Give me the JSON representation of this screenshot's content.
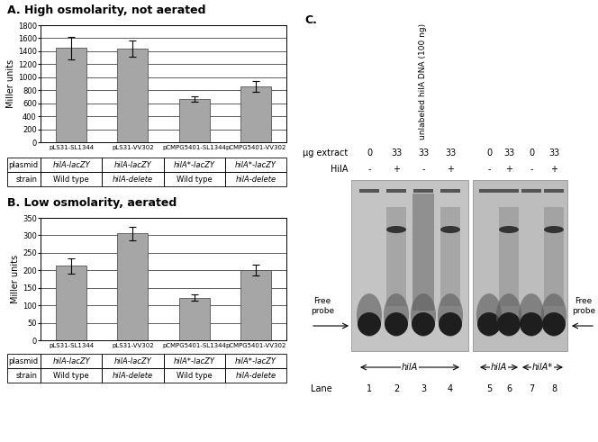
{
  "chart_data": [
    {
      "type": "bar",
      "panel": "A.",
      "title": "High osmolarity, not aerated",
      "categories": [
        "pLS31-SL1344",
        "pLS31-VV302",
        "pCMPG5401-SL1344",
        "pCMPG5401-VV302"
      ],
      "values": [
        1450,
        1440,
        670,
        860
      ],
      "errors": [
        170,
        120,
        40,
        80
      ],
      "color": "#a6a6a6",
      "y_label": "Miller units",
      "ylim": [
        0,
        1800
      ],
      "yticks": [
        0,
        200,
        400,
        600,
        800,
        1000,
        1200,
        1400,
        1600,
        1800
      ],
      "grid": true,
      "table": {
        "row_headers": [
          "plasmid",
          "strain"
        ],
        "rows": [
          [
            "hilA-lacZY",
            "hilA-lacZY",
            "hilA*-lacZY",
            "hilA*-lacZY"
          ],
          [
            "Wild type",
            "hilA-delete",
            "Wild type",
            "hilA-delete"
          ]
        ]
      }
    },
    {
      "type": "bar",
      "panel": "B.",
      "title": "Low osmolarity, aerated",
      "categories": [
        "pLS31-SL1344",
        "pLS31-VV302",
        "pCMPG5401-SL1344",
        "pCMPG5401-VV302"
      ],
      "values": [
        213,
        305,
        122,
        200
      ],
      "errors": [
        22,
        20,
        10,
        15
      ],
      "color": "#a6a6a6",
      "y_label": "Miller units",
      "ylim": [
        0,
        350
      ],
      "yticks": [
        0,
        50,
        100,
        150,
        200,
        250,
        300,
        350
      ],
      "grid": true,
      "table": {
        "row_headers": [
          "plasmid",
          "strain"
        ],
        "rows": [
          [
            "hilA-lacZY",
            "hilA-lacZY",
            "hilA*-lacZY",
            "hilA*-lacZY"
          ],
          [
            "Wild type",
            "hilA-delete",
            "Wild type",
            "hilA-delete"
          ]
        ]
      }
    }
  ],
  "gel": {
    "panel": "C.",
    "extract_label": "µg extract",
    "hila_label": "HilA",
    "lane_label": "Lane",
    "lanes": [
      1,
      2,
      3,
      4,
      5,
      6,
      7,
      8
    ],
    "extract": [
      0,
      33,
      33,
      33,
      0,
      33,
      0,
      33
    ],
    "hila": [
      "-",
      "+",
      "-",
      "+",
      "-",
      "+",
      "-",
      "+"
    ],
    "competitor": {
      "lane": 3,
      "label": "unlabeled hilA DNA (100 ng)"
    },
    "probe_label": "Free\nprobe",
    "probes": [
      {
        "label": "hilA",
        "lanes": [
          1,
          4
        ]
      },
      {
        "label": "hilA",
        "lanes": [
          5,
          6
        ]
      },
      {
        "label": "hilA*",
        "lanes": [
          7,
          8
        ]
      }
    ]
  }
}
